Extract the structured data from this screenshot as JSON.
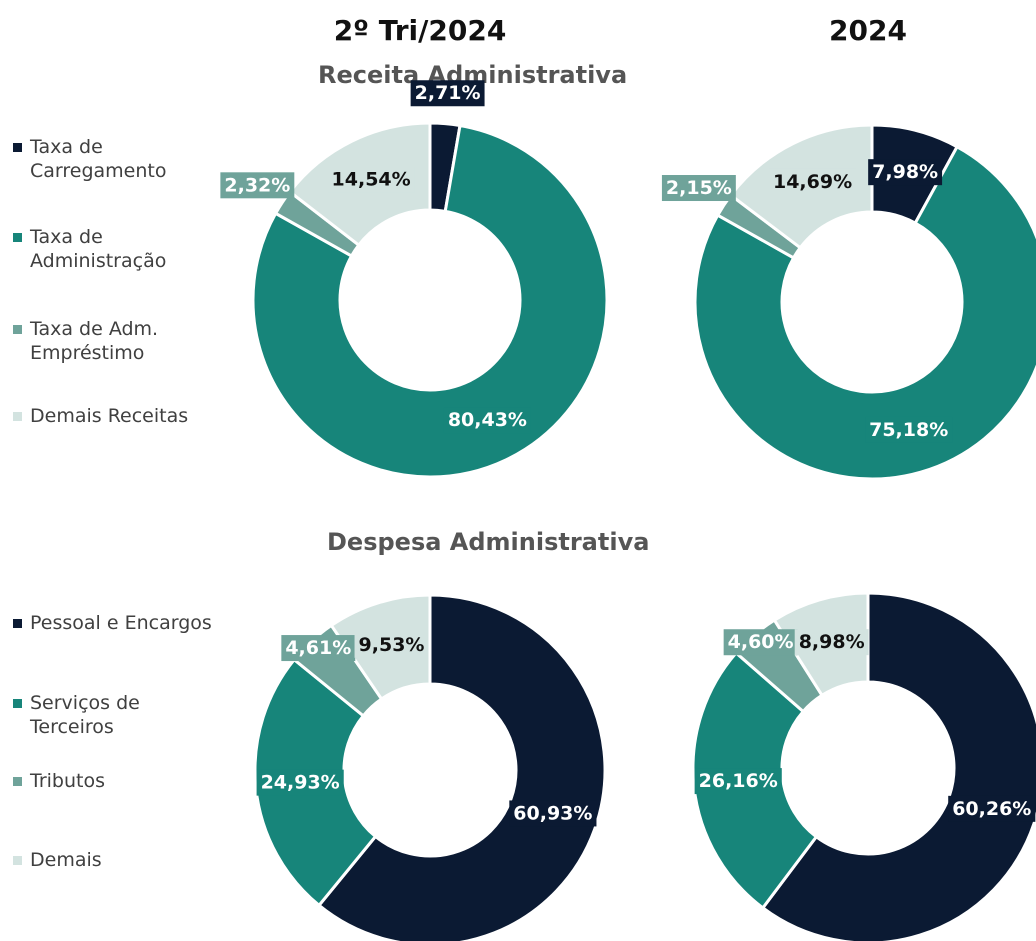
{
  "headers": [
    "2º Tri/2024",
    "2024"
  ],
  "chart_data": [
    {
      "type": "donut",
      "title": "Receita Administrativa",
      "categories": [
        "Taxa de Carregamento",
        "Taxa de Administração",
        "Taxa de Adm. Empréstimo",
        "Demais Receitas"
      ],
      "colors": [
        "#0b1a33",
        "#17857a",
        "#6fa39a",
        "#d3e3e0"
      ],
      "series": [
        {
          "values": [
            2.71,
            80.43,
            2.32,
            14.54
          ],
          "value_labels": [
            "2,71%",
            "80,43%",
            "2,32%",
            "14,54%"
          ]
        },
        {
          "values": [
            7.98,
            75.18,
            2.15,
            14.69
          ],
          "value_labels": [
            "7,98%",
            "75,18%",
            "2,15%",
            "14,69%"
          ]
        }
      ]
    },
    {
      "type": "donut",
      "title": "Despesa Administrativa",
      "categories": [
        "Pessoal e Encargos",
        "Serviços de Terceiros",
        "Tributos",
        "Demais"
      ],
      "colors": [
        "#0b1a33",
        "#17857a",
        "#6fa39a",
        "#d3e3e0"
      ],
      "series": [
        {
          "values": [
            60.93,
            24.93,
            4.61,
            9.53
          ],
          "value_labels": [
            "60,93%",
            "24,93%",
            "4,61%",
            "9,53%"
          ]
        },
        {
          "values": [
            60.26,
            26.16,
            4.6,
            8.98
          ],
          "value_labels": [
            "60,26%",
            "26,16%",
            "4,60%",
            "8,98%"
          ]
        }
      ]
    }
  ]
}
